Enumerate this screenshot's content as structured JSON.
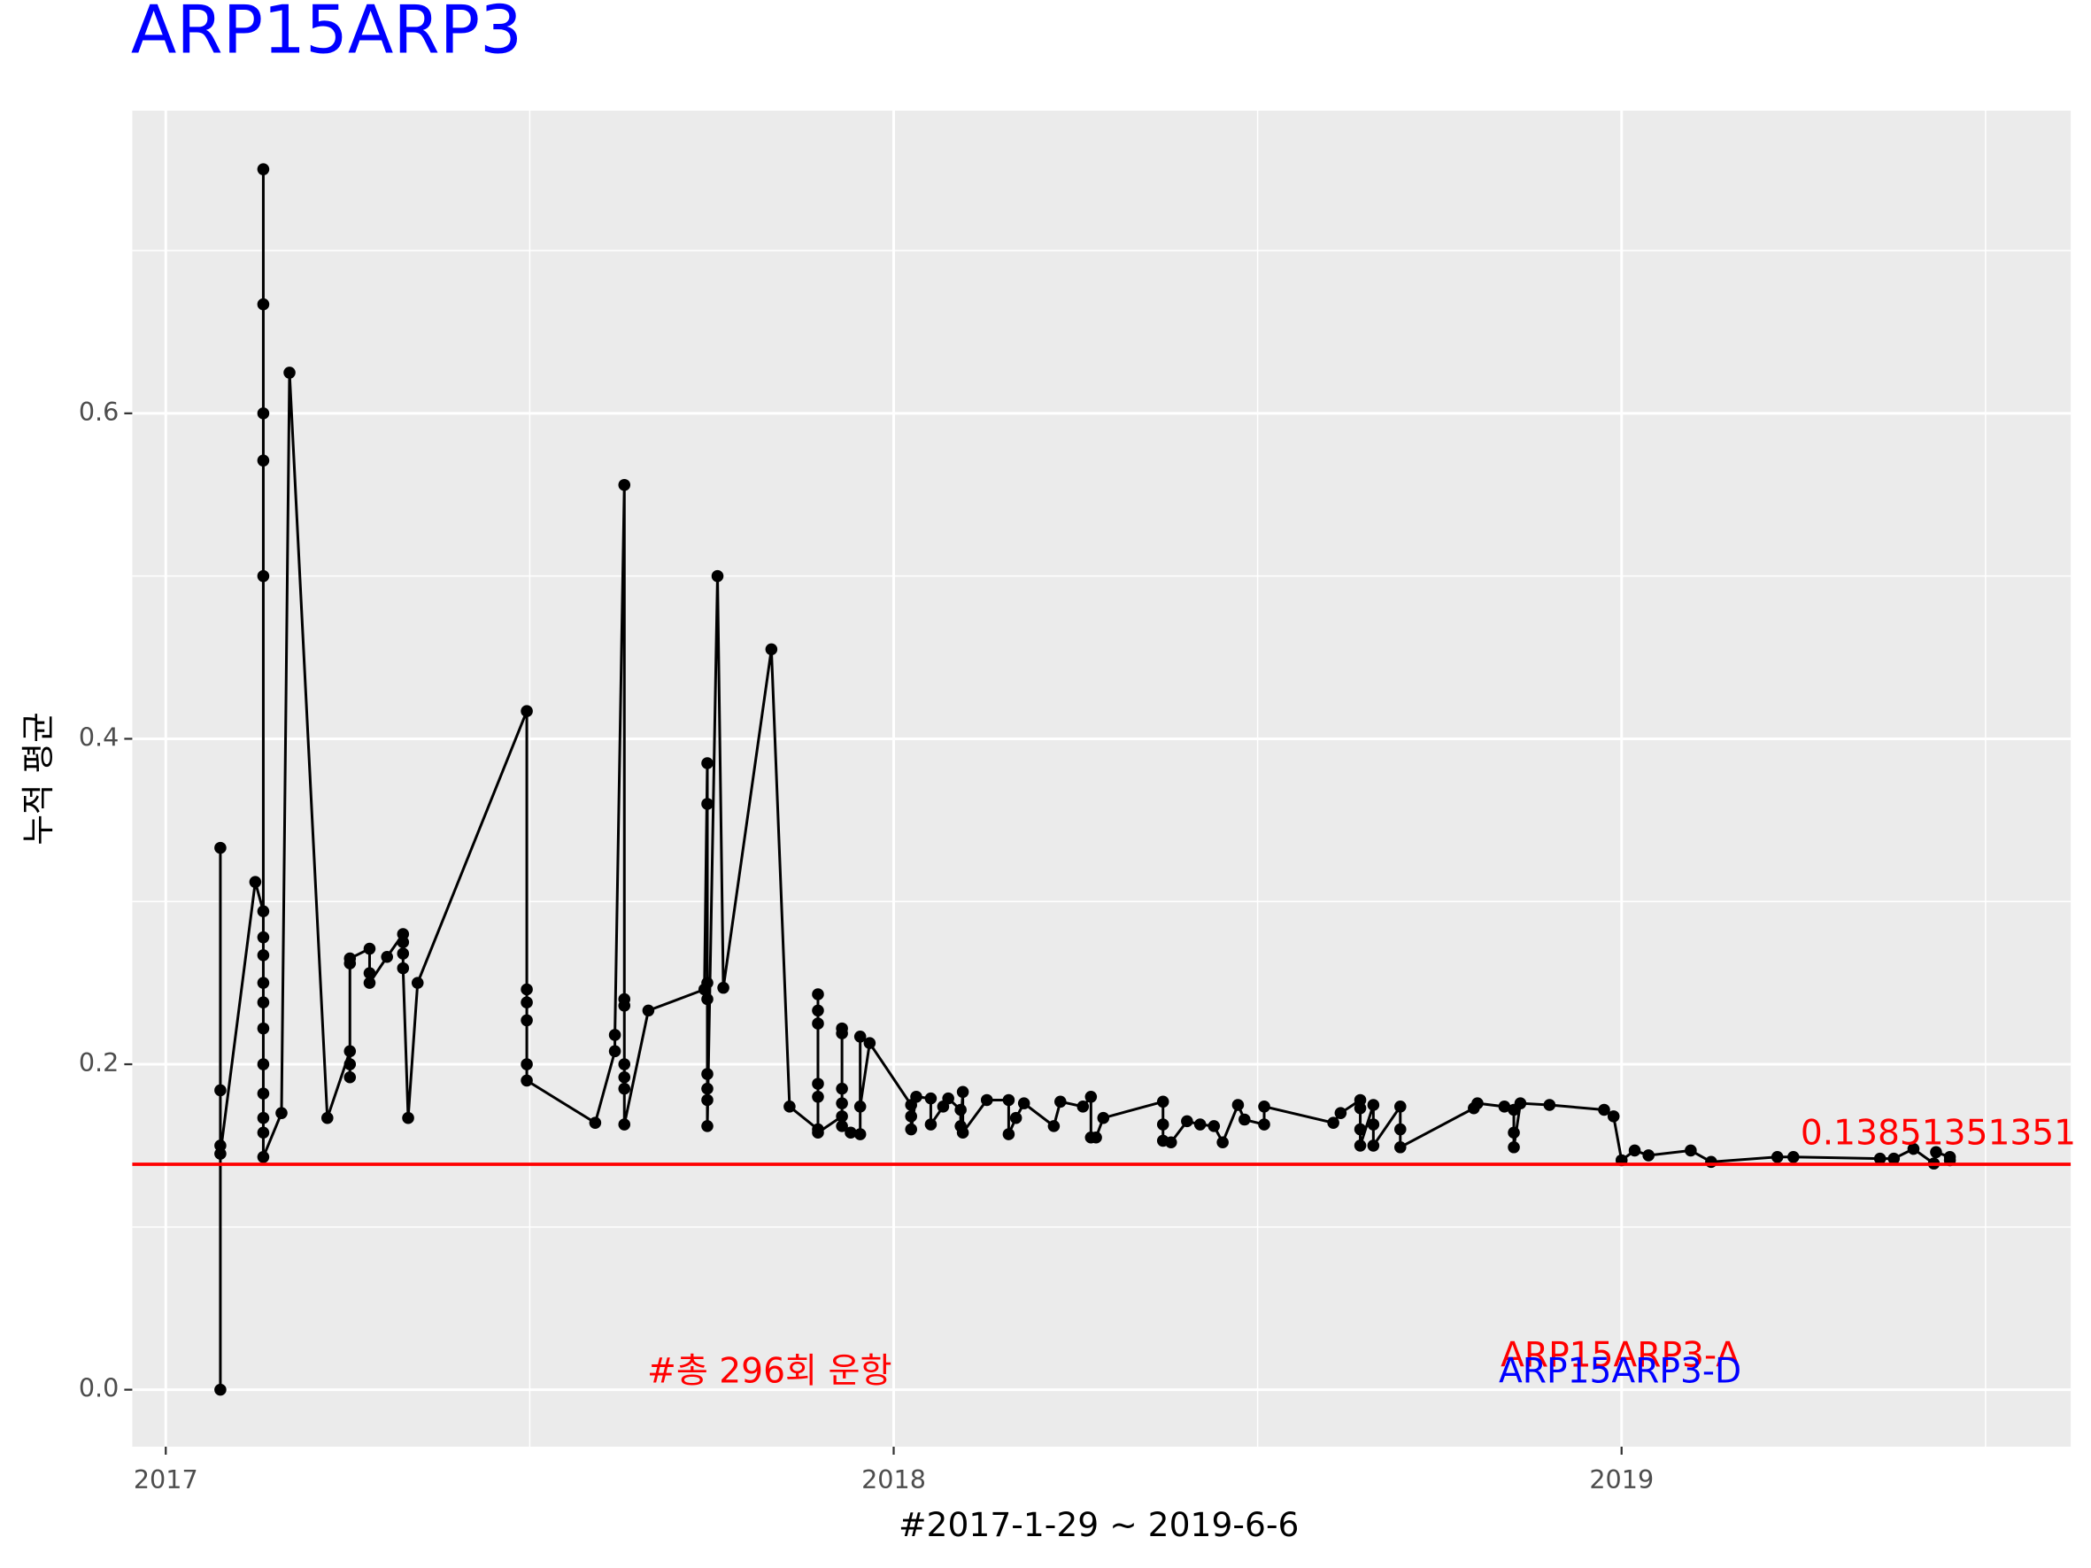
{
  "chart_data": {
    "type": "line",
    "title": "ARP15ARP3",
    "title_color": "#0000ff",
    "x_label": "#2017-1-29 ~ 2019-6-6",
    "y_label": "누적 평균",
    "xlim": [
      2016.954,
      2019.617
    ],
    "ylim": [
      -0.035,
      0.786
    ],
    "xticks": [
      2017,
      2018,
      2019
    ],
    "yticks": [
      {
        "value": 0,
        "label": "0.0"
      },
      0.2,
      0.4,
      0.6
    ],
    "x_minor_ticks": [
      2017.5,
      2018.5,
      2019.5
    ],
    "y_minor_ticks": [
      0.1,
      0.3,
      0.5,
      0.7
    ],
    "grid": true,
    "hline": {
      "value": 0.13851351351,
      "color": "#ff0000"
    },
    "annotations": [
      {
        "text": "#총 296회 운항",
        "color": "#ff0000"
      },
      {
        "text": "ARP15ARP3-A",
        "color": "#ff0000"
      },
      {
        "text": "ARP15ARP3-D",
        "color": "#0000ff"
      }
    ],
    "series": [
      {
        "color": "#000000",
        "x": [
          2017.075,
          2017.075,
          2017.075,
          2017.075,
          2017.075,
          2017.123,
          2017.134,
          2017.134,
          2017.134,
          2017.134,
          2017.134,
          2017.134,
          2017.134,
          2017.134,
          2017.134,
          2017.134,
          2017.134,
          2017.134,
          2017.134,
          2017.134,
          2017.134,
          2017.134,
          2017.159,
          2017.17,
          2017.222,
          2017.253,
          2017.253,
          2017.253,
          2017.253,
          2017.253,
          2017.28,
          2017.28,
          2017.28,
          2017.304,
          2017.326,
          2017.326,
          2017.326,
          2017.326,
          2017.333,
          2017.346,
          2017.496,
          2017.496,
          2017.496,
          2017.496,
          2017.496,
          2017.496,
          2017.59,
          2017.617,
          2017.617,
          2017.63,
          2017.63,
          2017.63,
          2017.63,
          2017.63,
          2017.63,
          2017.63,
          2017.663,
          2017.74,
          2017.744,
          2017.744,
          2017.744,
          2017.744,
          2017.744,
          2017.744,
          2017.744,
          2017.744,
          2017.758,
          2017.766,
          2017.832,
          2017.857,
          2017.896,
          2017.896,
          2017.896,
          2017.896,
          2017.896,
          2017.896,
          2017.896,
          2017.929,
          2017.929,
          2017.929,
          2017.929,
          2017.929,
          2017.929,
          2017.941,
          2017.954,
          2017.954,
          2017.954,
          2017.967,
          2018.024,
          2018.024,
          2018.024,
          2018.031,
          2018.051,
          2018.051,
          2018.068,
          2018.075,
          2018.092,
          2018.092,
          2018.095,
          2018.095,
          2018.128,
          2018.158,
          2018.158,
          2018.168,
          2018.179,
          2018.22,
          2018.229,
          2018.26,
          2018.271,
          2018.271,
          2018.278,
          2018.288,
          2018.37,
          2018.37,
          2018.37,
          2018.381,
          2018.403,
          2018.421,
          2018.44,
          2018.452,
          2018.473,
          2018.482,
          2018.509,
          2018.509,
          2018.604,
          2018.614,
          2018.641,
          2018.641,
          2018.641,
          2018.641,
          2018.659,
          2018.659,
          2018.659,
          2018.696,
          2018.696,
          2018.696,
          2018.797,
          2018.802,
          2018.839,
          2018.852,
          2018.852,
          2018.852,
          2018.861,
          2018.901,
          2018.976,
          2018.989,
          2019,
          2019.018,
          2019.037,
          2019.095,
          2019.123,
          2019.214,
          2019.236,
          2019.355,
          2019.374,
          2019.401,
          2019.429,
          2019.432,
          2019.451,
          2019.451
        ],
        "values": [
          0,
          0.333,
          0.184,
          0.15,
          0.145,
          0.312,
          0.294,
          0.278,
          0.75,
          0.667,
          0.6,
          0.571,
          0.5,
          0.267,
          0.25,
          0.238,
          0.222,
          0.2,
          0.182,
          0.167,
          0.158,
          0.143,
          0.17,
          0.625,
          0.167,
          0.208,
          0.2,
          0.192,
          0.262,
          0.265,
          0.271,
          0.256,
          0.25,
          0.266,
          0.28,
          0.275,
          0.268,
          0.259,
          0.167,
          0.25,
          0.417,
          0.246,
          0.238,
          0.227,
          0.2,
          0.19,
          0.164,
          0.208,
          0.218,
          0.556,
          0.24,
          0.236,
          0.2,
          0.192,
          0.185,
          0.163,
          0.233,
          0.246,
          0.385,
          0.36,
          0.25,
          0.24,
          0.194,
          0.185,
          0.178,
          0.162,
          0.5,
          0.247,
          0.455,
          0.174,
          0.16,
          0.243,
          0.233,
          0.225,
          0.188,
          0.18,
          0.158,
          0.168,
          0.185,
          0.222,
          0.219,
          0.176,
          0.162,
          0.158,
          0.157,
          0.217,
          0.174,
          0.213,
          0.175,
          0.168,
          0.16,
          0.18,
          0.179,
          0.163,
          0.174,
          0.179,
          0.172,
          0.162,
          0.183,
          0.158,
          0.178,
          0.178,
          0.157,
          0.167,
          0.176,
          0.162,
          0.177,
          0.174,
          0.18,
          0.155,
          0.155,
          0.167,
          0.177,
          0.163,
          0.153,
          0.152,
          0.165,
          0.163,
          0.162,
          0.152,
          0.175,
          0.166,
          0.163,
          0.174,
          0.164,
          0.17,
          0.178,
          0.173,
          0.16,
          0.15,
          0.175,
          0.163,
          0.15,
          0.174,
          0.16,
          0.149,
          0.173,
          0.176,
          0.174,
          0.172,
          0.158,
          0.149,
          0.176,
          0.175,
          0.172,
          0.168,
          0.141,
          0.147,
          0.144,
          0.147,
          0.14,
          0.143,
          0.143,
          0.142,
          0.142,
          0.148,
          0.139,
          0.146,
          0.143,
          0.141
        ]
      }
    ]
  }
}
